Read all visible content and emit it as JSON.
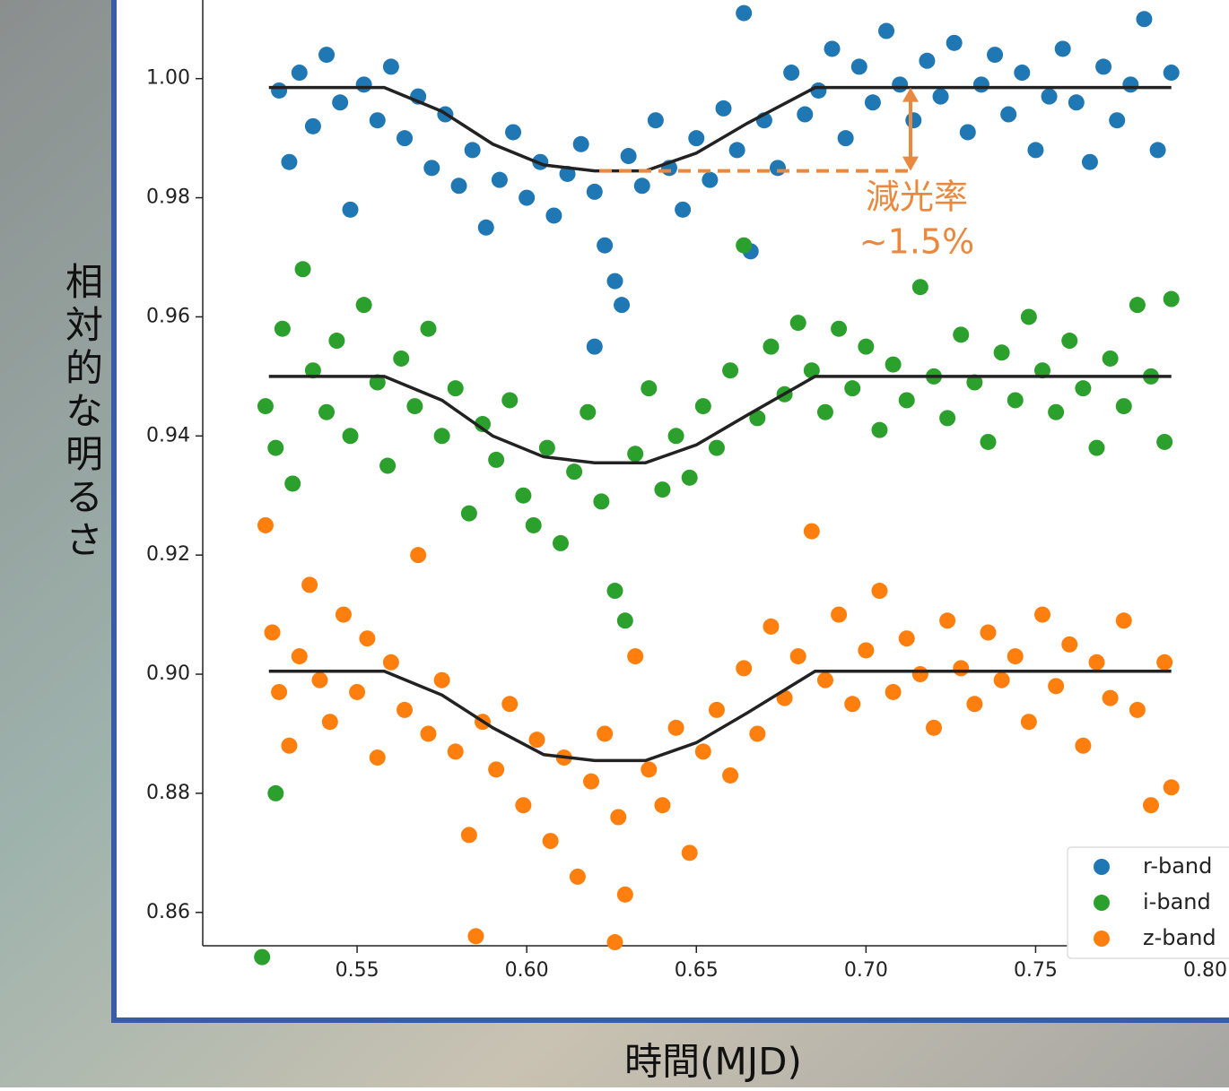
{
  "chart_data": {
    "type": "scatter",
    "xlabel": "時間(MJD)",
    "ylabel": "相対的な明るさ",
    "xlim": [
      0.5045,
      0.807
    ],
    "ylim": [
      0.8544,
      1.0132
    ],
    "xticks": [
      0.55,
      {
        "value": 0.6,
        "label": "0.60"
      },
      0.65,
      {
        "value": 0.7,
        "label": "0.70"
      },
      0.75,
      {
        "value": 0.8,
        "label": "0.80"
      }
    ],
    "yticks": [
      0.86,
      0.88,
      {
        "value": 0.9,
        "label": "0.90"
      },
      0.92,
      0.94,
      0.96,
      0.98,
      {
        "value": 1.0,
        "label": "1.00"
      }
    ],
    "grid": false,
    "legend": "lower right",
    "series": [
      {
        "name": "r-band",
        "color": "#1f77b4",
        "x": [
          0.527,
          0.53,
          0.533,
          0.537,
          0.541,
          0.545,
          0.548,
          0.552,
          0.556,
          0.56,
          0.564,
          0.568,
          0.572,
          0.576,
          0.58,
          0.584,
          0.588,
          0.592,
          0.596,
          0.6,
          0.604,
          0.608,
          0.612,
          0.616,
          0.62,
          0.62,
          0.623,
          0.626,
          0.628,
          0.63,
          0.634,
          0.638,
          0.642,
          0.646,
          0.65,
          0.654,
          0.658,
          0.662,
          0.664,
          0.666,
          0.67,
          0.674,
          0.678,
          0.682,
          0.686,
          0.69,
          0.694,
          0.698,
          0.702,
          0.706,
          0.71,
          0.714,
          0.718,
          0.722,
          0.726,
          0.73,
          0.734,
          0.738,
          0.742,
          0.746,
          0.75,
          0.754,
          0.758,
          0.762,
          0.766,
          0.77,
          0.774,
          0.778,
          0.782,
          0.786,
          0.79
        ],
        "values": [
          0.998,
          0.986,
          1.001,
          0.992,
          1.004,
          0.996,
          0.978,
          0.999,
          0.993,
          1.002,
          0.99,
          0.997,
          0.985,
          0.994,
          0.982,
          0.988,
          0.975,
          0.983,
          0.991,
          0.98,
          0.986,
          0.977,
          0.984,
          0.989,
          0.981,
          0.955,
          0.972,
          0.966,
          0.962,
          0.987,
          0.982,
          0.993,
          0.985,
          0.978,
          0.99,
          0.983,
          0.995,
          0.988,
          1.011,
          0.971,
          0.993,
          0.985,
          1.001,
          0.994,
          0.998,
          1.005,
          0.99,
          1.002,
          0.996,
          1.008,
          0.999,
          0.993,
          1.003,
          0.997,
          1.006,
          0.991,
          0.999,
          1.004,
          0.994,
          1.001,
          0.988,
          0.997,
          1.005,
          0.996,
          0.986,
          1.002,
          0.993,
          0.999,
          1.01,
          0.988,
          1.001
        ]
      },
      {
        "name": "i-band",
        "color": "#2ca02c",
        "x": [
          0.522,
          0.523,
          0.526,
          0.526,
          0.528,
          0.531,
          0.534,
          0.537,
          0.541,
          0.544,
          0.548,
          0.552,
          0.556,
          0.559,
          0.563,
          0.567,
          0.571,
          0.575,
          0.579,
          0.583,
          0.587,
          0.591,
          0.595,
          0.599,
          0.602,
          0.606,
          0.61,
          0.614,
          0.618,
          0.622,
          0.626,
          0.629,
          0.632,
          0.636,
          0.64,
          0.644,
          0.648,
          0.652,
          0.656,
          0.66,
          0.664,
          0.668,
          0.672,
          0.676,
          0.68,
          0.684,
          0.688,
          0.692,
          0.696,
          0.7,
          0.704,
          0.708,
          0.712,
          0.716,
          0.72,
          0.724,
          0.728,
          0.732,
          0.736,
          0.74,
          0.744,
          0.748,
          0.752,
          0.756,
          0.76,
          0.764,
          0.768,
          0.772,
          0.776,
          0.78,
          0.784,
          0.788,
          0.79
        ],
        "values": [
          0.8525,
          0.945,
          0.938,
          0.88,
          0.958,
          0.932,
          0.968,
          0.951,
          0.944,
          0.956,
          0.94,
          0.962,
          0.949,
          0.935,
          0.953,
          0.945,
          0.958,
          0.94,
          0.948,
          0.927,
          0.942,
          0.936,
          0.946,
          0.93,
          0.925,
          0.938,
          0.922,
          0.934,
          0.944,
          0.929,
          0.914,
          0.909,
          0.937,
          0.948,
          0.931,
          0.94,
          0.933,
          0.945,
          0.938,
          0.951,
          0.972,
          0.943,
          0.955,
          0.947,
          0.959,
          0.951,
          0.944,
          0.958,
          0.948,
          0.955,
          0.941,
          0.952,
          0.946,
          0.965,
          0.95,
          0.943,
          0.957,
          0.949,
          0.939,
          0.954,
          0.946,
          0.96,
          0.951,
          0.944,
          0.956,
          0.948,
          0.938,
          0.953,
          0.945,
          0.962,
          0.95,
          0.939,
          0.963
        ]
      },
      {
        "name": "z-band",
        "color": "#ff7f0e",
        "x": [
          0.523,
          0.525,
          0.527,
          0.53,
          0.533,
          0.536,
          0.539,
          0.542,
          0.546,
          0.55,
          0.553,
          0.556,
          0.56,
          0.564,
          0.568,
          0.571,
          0.575,
          0.579,
          0.583,
          0.585,
          0.587,
          0.591,
          0.595,
          0.599,
          0.603,
          0.607,
          0.611,
          0.615,
          0.619,
          0.623,
          0.626,
          0.627,
          0.629,
          0.632,
          0.636,
          0.64,
          0.644,
          0.648,
          0.652,
          0.656,
          0.66,
          0.664,
          0.668,
          0.672,
          0.676,
          0.68,
          0.684,
          0.688,
          0.692,
          0.696,
          0.7,
          0.704,
          0.708,
          0.712,
          0.716,
          0.72,
          0.724,
          0.728,
          0.732,
          0.736,
          0.74,
          0.744,
          0.748,
          0.752,
          0.756,
          0.76,
          0.764,
          0.768,
          0.772,
          0.776,
          0.78,
          0.784,
          0.788,
          0.79
        ],
        "values": [
          0.925,
          0.907,
          0.897,
          0.888,
          0.903,
          0.915,
          0.899,
          0.892,
          0.91,
          0.897,
          0.906,
          0.886,
          0.902,
          0.894,
          0.92,
          0.89,
          0.899,
          0.887,
          0.873,
          0.856,
          0.892,
          0.884,
          0.895,
          0.878,
          0.889,
          0.872,
          0.886,
          0.866,
          0.882,
          0.89,
          0.855,
          0.876,
          0.863,
          0.903,
          0.884,
          0.878,
          0.891,
          0.87,
          0.887,
          0.894,
          0.883,
          0.901,
          0.89,
          0.908,
          0.896,
          0.903,
          0.924,
          0.899,
          0.91,
          0.895,
          0.904,
          0.914,
          0.897,
          0.906,
          0.9,
          0.891,
          0.909,
          0.901,
          0.895,
          0.907,
          0.899,
          0.903,
          0.892,
          0.91,
          0.898,
          0.905,
          0.888,
          0.902,
          0.896,
          0.909,
          0.894,
          0.878,
          0.902,
          0.881
        ]
      }
    ],
    "fits": [
      {
        "color": "#222222",
        "x": [
          0.524,
          0.558,
          0.575,
          0.59,
          0.605,
          0.62,
          0.635,
          0.65,
          0.665,
          0.685,
          0.79
        ],
        "values": [
          0.9985,
          0.9985,
          0.9945,
          0.989,
          0.9855,
          0.9845,
          0.9845,
          0.9875,
          0.9925,
          0.9985,
          0.9985
        ]
      },
      {
        "color": "#222222",
        "x": [
          0.524,
          0.558,
          0.575,
          0.59,
          0.605,
          0.62,
          0.635,
          0.65,
          0.665,
          0.685,
          0.79
        ],
        "values": [
          0.95,
          0.95,
          0.946,
          0.94,
          0.9365,
          0.9355,
          0.9355,
          0.9385,
          0.9435,
          0.95,
          0.95
        ]
      },
      {
        "color": "#222222",
        "x": [
          0.524,
          0.558,
          0.575,
          0.59,
          0.605,
          0.62,
          0.635,
          0.65,
          0.665,
          0.685,
          0.79
        ],
        "values": [
          0.9005,
          0.9005,
          0.8965,
          0.891,
          0.8865,
          0.8855,
          0.8855,
          0.8885,
          0.8935,
          0.9005,
          0.9005
        ]
      }
    ],
    "annotation": {
      "lines": [
        "減光率",
        "~1.5%"
      ],
      "color": "#e8893f"
    }
  }
}
